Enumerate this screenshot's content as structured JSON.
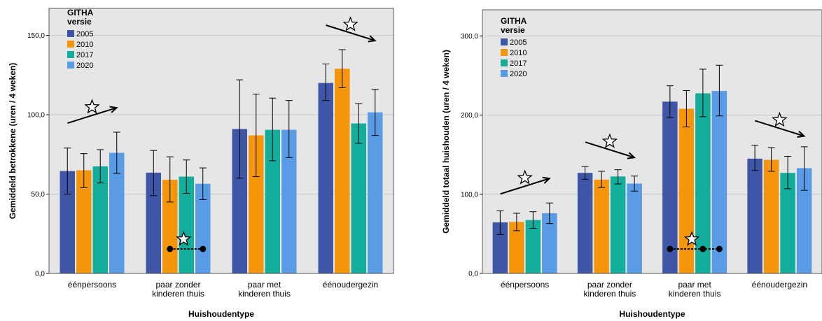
{
  "chart_data": [
    {
      "type": "bar",
      "categories": [
        "éénpersoons",
        "paar zonder\nkinderen thuis",
        "paar met\nkinderen thuis",
        "éénoudergezin"
      ],
      "xlabel": "Huishoudentype",
      "ylabel": "Gemiddeld betrokkene (uren / 4 weken)",
      "ylim": [
        0,
        167
      ],
      "yticks": [
        0,
        50,
        100,
        150
      ],
      "ytick_labels": [
        "0,0",
        "50,0",
        "100,0",
        "150,0"
      ],
      "grid": true,
      "legend": {
        "title": "GITHA\nversie",
        "placement": "top-left"
      },
      "series": [
        {
          "name": "2005",
          "color": "#3f55a6",
          "values": [
            64.5,
            63.5,
            91,
            120
          ],
          "err_low": [
            50,
            49,
            60,
            109
          ],
          "err_high": [
            79,
            77.5,
            122,
            132
          ]
        },
        {
          "name": "2010",
          "color": "#f5960a",
          "values": [
            65,
            59,
            87,
            129
          ],
          "err_low": [
            54,
            45,
            61,
            117
          ],
          "err_high": [
            75.5,
            73.5,
            113,
            141
          ]
        },
        {
          "name": "2017",
          "color": "#12ad9b",
          "values": [
            67.5,
            61,
            90.5,
            94.5
          ],
          "err_low": [
            57,
            50.5,
            71,
            82
          ],
          "err_high": [
            78,
            71.5,
            110.5,
            107
          ]
        },
        {
          "name": "2020",
          "color": "#5a9be6",
          "values": [
            76,
            56.5,
            90.5,
            101.5
          ],
          "err_low": [
            63,
            46.5,
            73,
            87
          ],
          "err_high": [
            89,
            66.5,
            109,
            116
          ]
        }
      ],
      "annotations": [
        {
          "kind": "arrow-up",
          "category": 0,
          "star": true
        },
        {
          "kind": "dots",
          "category": 1,
          "star": true,
          "dots": [
            "2010",
            "2020"
          ]
        },
        {
          "kind": "arrow-down",
          "category": 3,
          "star": true
        }
      ]
    },
    {
      "type": "bar",
      "categories": [
        "éénpersoons",
        "paar zonder\nkinderen thuis",
        "paar met\nkinderen thuis",
        "éénoudergezin"
      ],
      "xlabel": "Huishoudentype",
      "ylabel": "Gemiddeld totaal huishouden (uren / 4 weken)",
      "ylim": [
        0,
        333
      ],
      "yticks": [
        0,
        100,
        200,
        300
      ],
      "ytick_labels": [
        "0,0",
        "100,0",
        "200,0",
        "300,0"
      ],
      "grid": true,
      "legend": {
        "title": "GITHA\nversie",
        "placement": "top-left"
      },
      "series": [
        {
          "name": "2005",
          "color": "#3f55a6",
          "values": [
            64.5,
            127,
            217,
            145
          ],
          "err_low": [
            49,
            119,
            197,
            130
          ],
          "err_high": [
            79,
            135,
            237,
            162
          ]
        },
        {
          "name": "2010",
          "color": "#f5960a",
          "values": [
            65,
            118.5,
            208,
            143.5
          ],
          "err_low": [
            54,
            108.5,
            185,
            129
          ],
          "err_high": [
            76,
            129,
            231,
            159
          ]
        },
        {
          "name": "2017",
          "color": "#12ad9b",
          "values": [
            67.5,
            122.5,
            227.5,
            127
          ],
          "err_low": [
            57,
            113,
            198,
            107
          ],
          "err_high": [
            78,
            131,
            258,
            148
          ]
        },
        {
          "name": "2020",
          "color": "#5a9be6",
          "values": [
            76,
            113.5,
            230.5,
            133
          ],
          "err_low": [
            63,
            104,
            199,
            105
          ],
          "err_high": [
            89,
            123,
            263,
            160
          ]
        }
      ],
      "annotations": [
        {
          "kind": "arrow-up",
          "category": 0,
          "star": true
        },
        {
          "kind": "arrow-down",
          "category": 1,
          "star": true
        },
        {
          "kind": "dots",
          "category": 2,
          "star": true,
          "dots": [
            "2005",
            "2017",
            "2020"
          ]
        },
        {
          "kind": "arrow-down",
          "category": 3,
          "star": true
        }
      ]
    }
  ]
}
